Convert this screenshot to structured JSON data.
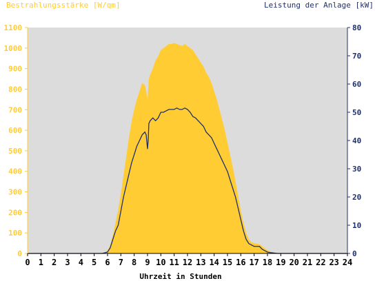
{
  "chart_data": {
    "type": "area",
    "title_left": "Bestrahlungsstärke [W/qm]",
    "title_right": "Leistung der Anlage [kW]",
    "xlabel": "Uhrzeit in Stunden",
    "x_ticks": [
      "0",
      "1",
      "2",
      "3",
      "4",
      "5",
      "6",
      "7",
      "8",
      "9",
      "10",
      "11",
      "12",
      "13",
      "14",
      "15",
      "16",
      "17",
      "18",
      "19",
      "20",
      "21",
      "22",
      "23",
      "24"
    ],
    "xlim": [
      0,
      24
    ],
    "ylim_left": [
      0,
      1100
    ],
    "ylim_right": [
      0,
      80
    ],
    "y_ticks_left": [
      "0",
      "100",
      "200",
      "300",
      "400",
      "500",
      "600",
      "700",
      "800",
      "900",
      "1000",
      "1100"
    ],
    "y_ticks_right": [
      "0",
      "10",
      "20",
      "30",
      "40",
      "50",
      "60",
      "70",
      "80"
    ],
    "colors": {
      "irradiance": "#ffcc33",
      "power": "#1f2f6b",
      "plot_background": "#dcdcdc",
      "left_axis": "#ffcc33",
      "right_axis": "#1f2f6b"
    },
    "series": [
      {
        "axis": "left",
        "style": "area",
        "x": [
          0,
          5.5,
          5.8,
          6.0,
          6.2,
          6.4,
          6.6,
          6.8,
          7.0,
          7.2,
          7.4,
          7.6,
          7.8,
          8.0,
          8.2,
          8.4,
          8.6,
          8.8,
          8.9,
          9.0,
          9.05,
          9.1,
          9.2,
          9.4,
          9.6,
          9.8,
          10.0,
          10.2,
          10.4,
          10.6,
          10.8,
          11.0,
          11.2,
          11.4,
          11.6,
          11.8,
          12.0,
          12.2,
          12.4,
          12.6,
          12.8,
          13.0,
          13.2,
          13.4,
          13.6,
          13.8,
          14.0,
          14.2,
          14.4,
          14.6,
          14.8,
          15.0,
          15.2,
          15.4,
          15.6,
          15.8,
          16.0,
          16.2,
          16.4,
          16.6,
          16.8,
          17.0,
          17.2,
          17.4,
          17.6,
          17.8,
          18.0,
          18.2,
          18.4,
          18.6,
          18.8,
          19.0,
          19.2,
          24
        ],
        "values": [
          0,
          0,
          5,
          15,
          40,
          90,
          150,
          210,
          290,
          380,
          470,
          560,
          640,
          700,
          750,
          790,
          830,
          820,
          790,
          750,
          800,
          850,
          870,
          900,
          940,
          960,
          990,
          1000,
          1010,
          1020,
          1020,
          1025,
          1020,
          1015,
          1010,
          1020,
          1010,
          1000,
          990,
          970,
          950,
          930,
          910,
          880,
          860,
          830,
          790,
          750,
          700,
          650,
          600,
          540,
          480,
          420,
          350,
          280,
          210,
          150,
          100,
          70,
          55,
          50,
          48,
          45,
          35,
          25,
          15,
          10,
          5,
          3,
          2,
          1,
          0,
          0
        ]
      },
      {
        "axis": "right",
        "style": "line",
        "x": [
          0,
          5.6,
          6.0,
          6.2,
          6.4,
          6.6,
          6.8,
          7.0,
          7.2,
          7.4,
          7.6,
          7.8,
          8.0,
          8.2,
          8.4,
          8.6,
          8.8,
          8.9,
          9.0,
          9.05,
          9.1,
          9.2,
          9.4,
          9.6,
          9.8,
          10.0,
          10.2,
          10.4,
          10.6,
          10.8,
          11.0,
          11.2,
          11.4,
          11.6,
          11.8,
          12.0,
          12.2,
          12.4,
          12.6,
          12.8,
          13.0,
          13.2,
          13.4,
          13.6,
          13.8,
          14.0,
          14.2,
          14.4,
          14.6,
          14.8,
          15.0,
          15.2,
          15.4,
          15.6,
          15.8,
          16.0,
          16.2,
          16.4,
          16.6,
          16.8,
          17.0,
          17.2,
          17.4,
          17.6,
          17.8,
          18.0,
          18.2,
          18.4,
          18.6,
          18.8,
          19.0,
          19.2,
          24
        ],
        "values": [
          0,
          0,
          0.5,
          2,
          5,
          8,
          10,
          15,
          20,
          24,
          28,
          32,
          35,
          38,
          40,
          42,
          43,
          42,
          37,
          40,
          46,
          47,
          48,
          47,
          48,
          50,
          50,
          50.5,
          51,
          51,
          51,
          51.5,
          51,
          51,
          51.5,
          51,
          50,
          48.5,
          48,
          47,
          46,
          45,
          43,
          42,
          41,
          39,
          37,
          35,
          33,
          31,
          29,
          26,
          23,
          20,
          16,
          12,
          8,
          5,
          3.5,
          3,
          2.5,
          2.5,
          2.5,
          1.5,
          1,
          0.5,
          0.3,
          0.2,
          0.1,
          0,
          0,
          0,
          0
        ]
      }
    ]
  }
}
